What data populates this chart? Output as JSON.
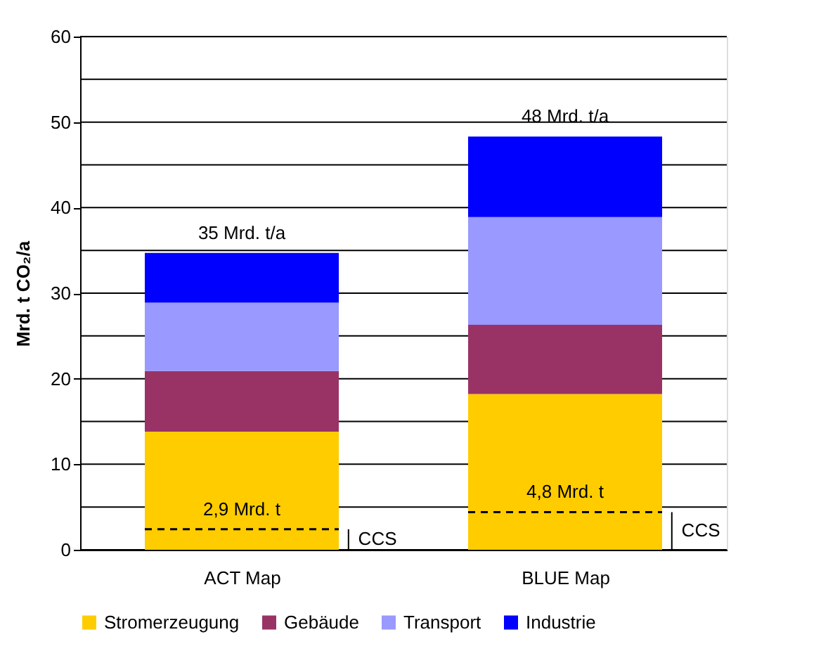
{
  "chart_data": {
    "type": "bar",
    "stacked": true,
    "ylabel": "Mrd. t CO₂/a",
    "categories": [
      "ACT Map",
      "BLUE Map"
    ],
    "series": [
      {
        "name": "Stromerzeugung",
        "color": "#ffcc00",
        "values": [
          13.8,
          18.2
        ]
      },
      {
        "name": "Gebäude",
        "color": "#993366",
        "values": [
          7.1,
          8.1
        ]
      },
      {
        "name": "Transport",
        "color": "#9999ff",
        "values": [
          8.0,
          12.6
        ]
      },
      {
        "name": "Industrie",
        "color": "#0000ff",
        "values": [
          5.8,
          9.4
        ]
      }
    ],
    "totals": [
      "35 Mrd. t/a",
      "48 Mrd. t/a"
    ],
    "ylim": [
      0,
      60
    ],
    "yticks": [
      0,
      {
        "value": 5,
        "label": null
      },
      10,
      {
        "value": 15,
        "label": null
      },
      20,
      {
        "value": 25,
        "label": null
      },
      30,
      {
        "value": 35,
        "label": null
      },
      40,
      {
        "value": 45,
        "label": null
      },
      50,
      {
        "value": 55,
        "label": null
      },
      60
    ],
    "grid": "y",
    "legend": "bottom",
    "ref_lines": [
      {
        "axis": "y",
        "value": 2.4,
        "label": "2,9 Mrd. t",
        "line_style": "dashed",
        "color": "#000000"
      },
      {
        "axis": "y",
        "value": 4.4,
        "label": "4,8 Mrd. t",
        "line_style": "dashed",
        "color": "#000000"
      }
    ],
    "annotations": [
      "CCS",
      "CCS"
    ]
  }
}
